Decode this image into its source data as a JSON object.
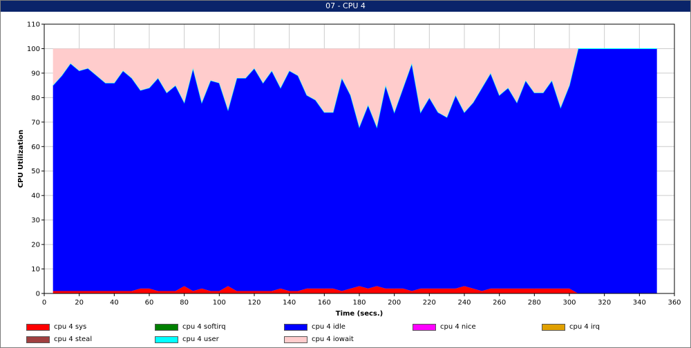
{
  "window": {
    "title": "07 - CPU 4"
  },
  "chart_data": {
    "type": "area",
    "stacked": true,
    "title": "07 - CPU 4",
    "xlabel": "Time (secs.)",
    "ylabel": "CPU Utilization",
    "xlim": [
      0,
      360
    ],
    "ylim": [
      0,
      110
    ],
    "xticks": [
      0,
      20,
      40,
      60,
      80,
      100,
      120,
      140,
      160,
      180,
      200,
      220,
      240,
      260,
      280,
      300,
      320,
      340,
      360
    ],
    "yticks": [
      0,
      10,
      20,
      30,
      40,
      50,
      60,
      70,
      80,
      90,
      100,
      110
    ],
    "grid": true,
    "legend_position": "bottom",
    "x": [
      5,
      10,
      15,
      20,
      25,
      30,
      35,
      40,
      45,
      50,
      55,
      60,
      65,
      70,
      75,
      80,
      85,
      90,
      95,
      100,
      105,
      110,
      115,
      120,
      125,
      130,
      135,
      140,
      145,
      150,
      155,
      160,
      165,
      170,
      175,
      180,
      185,
      190,
      195,
      200,
      205,
      210,
      215,
      220,
      225,
      230,
      235,
      240,
      245,
      250,
      255,
      260,
      265,
      270,
      275,
      280,
      285,
      290,
      295,
      300,
      305,
      310,
      315,
      320,
      325,
      330,
      335,
      340,
      345,
      350
    ],
    "series": [
      {
        "name": "cpu 4 sys",
        "color": "#ff0000",
        "values": [
          1,
          1,
          1,
          1,
          1,
          1,
          1,
          1,
          1,
          1,
          2,
          2,
          1,
          1,
          1,
          3,
          1,
          2,
          1,
          1,
          3,
          1,
          1,
          1,
          1,
          1,
          2,
          1,
          1,
          2,
          2,
          2,
          2,
          1,
          2,
          3,
          2,
          3,
          2,
          2,
          2,
          1,
          2,
          2,
          2,
          2,
          2,
          3,
          2,
          1,
          2,
          2,
          2,
          2,
          2,
          2,
          2,
          2,
          2,
          2,
          0,
          0,
          0,
          0,
          0,
          0,
          0,
          0,
          0,
          0
        ]
      },
      {
        "name": "cpu 4 softirq",
        "color": "#008000",
        "values": [
          0,
          0,
          0,
          0,
          0,
          0,
          0,
          0,
          0,
          0,
          0,
          0,
          0,
          0,
          0,
          0,
          0,
          0,
          0,
          0,
          0,
          0,
          0,
          0,
          0,
          0,
          0,
          0,
          0,
          0,
          0,
          0,
          0,
          0,
          0,
          0,
          0,
          0,
          0,
          0,
          0,
          0,
          0,
          0,
          0,
          0,
          0,
          0,
          0,
          0,
          0,
          0,
          0,
          0,
          0,
          0,
          0,
          0,
          0,
          0,
          0,
          0,
          0,
          0,
          0,
          0,
          0,
          0,
          0,
          0
        ]
      },
      {
        "name": "cpu 4 idle",
        "color": "#0000ff",
        "values": [
          84,
          88,
          93,
          90,
          91,
          88,
          85,
          85,
          90,
          87,
          81,
          82,
          87,
          81,
          84,
          75,
          91,
          76,
          86,
          85,
          72,
          87,
          87,
          91,
          85,
          90,
          82,
          90,
          88,
          79,
          77,
          72,
          72,
          87,
          79,
          65,
          75,
          65,
          83,
          72,
          82,
          93,
          72,
          78,
          72,
          70,
          79,
          71,
          76,
          83,
          88,
          79,
          82,
          76,
          85,
          80,
          80,
          85,
          74,
          83,
          100,
          100,
          100,
          100,
          100,
          100,
          100,
          100,
          100,
          100
        ]
      },
      {
        "name": "cpu 4 nice",
        "color": "#ff00ff",
        "values": [
          0,
          0,
          0,
          0,
          0,
          0,
          0,
          0,
          0,
          0,
          0,
          0,
          0,
          0,
          0,
          0,
          0,
          0,
          0,
          0,
          0,
          0,
          0,
          0,
          0,
          0,
          0,
          0,
          0,
          0,
          0,
          0,
          0,
          0,
          0,
          0,
          0,
          0,
          0,
          0,
          0,
          0,
          0,
          0,
          0,
          0,
          0,
          0,
          0,
          0,
          0,
          0,
          0,
          0,
          0,
          0,
          0,
          0,
          0,
          0,
          0,
          0,
          0,
          0,
          0,
          0,
          0,
          0,
          0,
          0
        ]
      },
      {
        "name": "cpu 4 irq",
        "color": "#e0a000",
        "values": [
          0,
          0,
          0,
          0,
          0,
          0,
          0,
          0,
          0,
          0,
          0,
          0,
          0,
          0,
          0,
          0,
          0,
          0,
          0,
          0,
          0,
          0,
          0,
          0,
          0,
          0,
          0,
          0,
          0,
          0,
          0,
          0,
          0,
          0,
          0,
          0,
          0,
          0,
          0,
          0,
          0,
          0,
          0,
          0,
          0,
          0,
          0,
          0,
          0,
          0,
          0,
          0,
          0,
          0,
          0,
          0,
          0,
          0,
          0,
          0,
          0,
          0,
          0,
          0,
          0,
          0,
          0,
          0,
          0,
          0
        ]
      },
      {
        "name": "cpu 4 steal",
        "color": "#a04040",
        "values": [
          0,
          0,
          0,
          0,
          0,
          0,
          0,
          0,
          0,
          0,
          0,
          0,
          0,
          0,
          0,
          0,
          0,
          0,
          0,
          0,
          0,
          0,
          0,
          0,
          0,
          0,
          0,
          0,
          0,
          0,
          0,
          0,
          0,
          0,
          0,
          0,
          0,
          0,
          0,
          0,
          0,
          0,
          0,
          0,
          0,
          0,
          0,
          0,
          0,
          0,
          0,
          0,
          0,
          0,
          0,
          0,
          0,
          0,
          0,
          0,
          0,
          0,
          0,
          0,
          0,
          0,
          0,
          0,
          0,
          0
        ]
      },
      {
        "name": "cpu 4 user",
        "color": "#00ffff",
        "values": [
          0,
          0,
          0,
          0,
          0,
          0,
          0,
          0,
          0,
          0,
          0,
          0,
          0,
          0,
          0,
          0,
          0,
          0,
          0,
          0,
          0,
          0,
          0,
          0,
          0,
          0,
          0,
          0,
          0,
          0,
          0,
          0,
          0,
          0,
          0,
          0,
          0,
          0,
          0,
          0,
          0,
          0,
          0,
          0,
          0,
          0,
          0,
          0,
          0,
          0,
          0,
          0,
          0,
          0,
          0,
          0,
          0,
          0,
          0,
          0,
          0,
          0,
          0,
          0,
          0,
          0,
          0,
          0,
          0,
          0
        ]
      },
      {
        "name": "cpu 4 iowait",
        "color": "#ffcccc",
        "values": [
          15,
          11,
          6,
          9,
          8,
          11,
          14,
          14,
          9,
          12,
          17,
          16,
          12,
          18,
          15,
          22,
          8,
          22,
          13,
          14,
          25,
          12,
          12,
          8,
          14,
          9,
          16,
          9,
          11,
          19,
          21,
          26,
          26,
          12,
          19,
          32,
          23,
          32,
          15,
          26,
          16,
          6,
          26,
          20,
          26,
          28,
          19,
          26,
          22,
          16,
          10,
          19,
          16,
          22,
          13,
          18,
          18,
          13,
          24,
          15,
          0,
          0,
          0,
          0,
          0,
          0,
          0,
          0,
          0,
          0
        ]
      }
    ]
  }
}
